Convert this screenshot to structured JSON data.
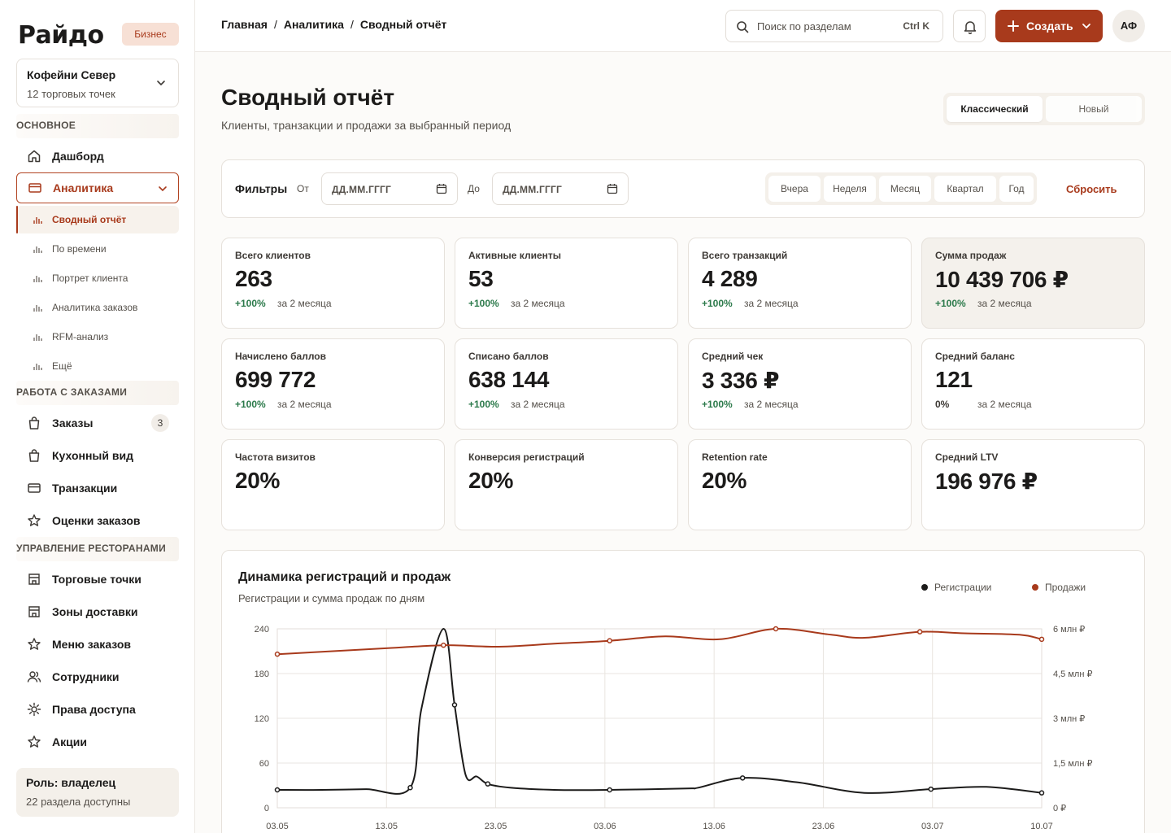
{
  "brand": {
    "logo": "Райдо",
    "badge": "Бизнес",
    "accent": "#a83a1c"
  },
  "org": {
    "name": "Кофейни Север",
    "subtitle": "12 торговых точек"
  },
  "sidebar": {
    "sections": [
      {
        "title": "ОСНОВНОЕ"
      },
      {
        "title": "РАБОТА С ЗАКАЗАМИ"
      },
      {
        "title": "УПРАВЛЕНИЕ РЕСТОРАНАМИ"
      }
    ],
    "main_items": [
      {
        "label": "Дашборд",
        "icon": "home-icon"
      },
      {
        "label": "Аналитика",
        "icon": "card-icon"
      }
    ],
    "analytics_sub": [
      {
        "label": "Сводный отчёт"
      },
      {
        "label": "По времени"
      },
      {
        "label": "Портрет клиента"
      },
      {
        "label": "Аналитика заказов"
      },
      {
        "label": "RFM-анализ"
      },
      {
        "label": "Ещё"
      }
    ],
    "orders_items": [
      {
        "label": "Заказы",
        "icon": "bag-icon",
        "count": "3"
      },
      {
        "label": "Кухонный вид",
        "icon": "bag-icon"
      },
      {
        "label": "Транзакции",
        "icon": "card-icon"
      },
      {
        "label": "Оценки заказов",
        "icon": "star-icon"
      }
    ],
    "rest_items": [
      {
        "label": "Торговые точки",
        "icon": "store-icon"
      },
      {
        "label": "Зоны доставки",
        "icon": "store-icon"
      },
      {
        "label": "Меню заказов",
        "icon": "star-icon"
      },
      {
        "label": "Сотрудники",
        "icon": "users-icon"
      },
      {
        "label": "Права доступа",
        "icon": "gear-icon"
      },
      {
        "label": "Акции",
        "icon": "star-icon"
      }
    ],
    "role": {
      "title": "Роль: владелец",
      "subtitle": "22 раздела доступны"
    }
  },
  "topbar": {
    "breadcrumbs": [
      "Главная",
      "Аналитика",
      "Сводный отчёт"
    ],
    "search_placeholder": "Поиск по разделам",
    "search_shortcut": "Ctrl K",
    "create_label": "Создать",
    "avatar_initials": "АФ"
  },
  "header": {
    "title": "Сводный отчёт",
    "subtitle": "Клиенты, транзакции и продажи за выбранный период",
    "view_modes": [
      "Классический",
      "Новый"
    ],
    "active_view": "Классический"
  },
  "filters": {
    "title": "Фильтры",
    "from_label": "От",
    "to_label": "До",
    "from_value": "ДД.ММ.ГГГГ",
    "to_value": "ДД.ММ.ГГГГ",
    "periods": [
      "Вчера",
      "Неделя",
      "Месяц",
      "Квартал",
      "Год"
    ],
    "reset_label": "Сбросить"
  },
  "kpis": [
    {
      "label": "Всего клиентов",
      "value": "263",
      "delta": "+100%",
      "period": "за 2 месяца"
    },
    {
      "label": "Активные клиенты",
      "value": "53",
      "delta": "+100%",
      "period": "за 2 месяца"
    },
    {
      "label": "Всего транзакций",
      "value": "4 289",
      "delta": "+100%",
      "period": "за 2 месяца"
    },
    {
      "label": "Сумма продаж",
      "value": "10 439 706 ₽",
      "delta": "+100%",
      "period": "за 2 месяца",
      "highlight": true
    },
    {
      "label": "Начислено баллов",
      "value": "699 772",
      "delta": "+100%",
      "period": "за 2 месяца"
    },
    {
      "label": "Списано баллов",
      "value": "638 144",
      "delta": "+100%",
      "period": "за 2 месяца"
    },
    {
      "label": "Средний чек",
      "value": "3 336 ₽",
      "delta": "+100%",
      "period": "за 2 месяца"
    },
    {
      "label": "Средний баланс",
      "value": "121",
      "delta": "0%",
      "period": "за 2 месяца"
    },
    {
      "label": "Частота визитов",
      "value": "20%"
    },
    {
      "label": "Конверсия регистраций",
      "value": "20%"
    },
    {
      "label": "Retention rate",
      "value": "20%"
    },
    {
      "label": "Средний LTV",
      "value": "196 976 ₽"
    }
  ],
  "chart": {
    "title": "Динамика регистраций и продаж",
    "subtitle": "Регистрации и сумма продаж по дням"
  },
  "chart_data": {
    "type": "line",
    "title": "Динамика регистраций и продаж",
    "subtitle": "Регистрации и сумма продаж по дням",
    "x_ticks": [
      "03.05",
      "13.05",
      "23.05",
      "03.06",
      "13.06",
      "23.06",
      "03.07",
      "10.07"
    ],
    "y_left_ticks": [
      "0",
      "60",
      "120",
      "180",
      "240"
    ],
    "y_left_range": [
      0,
      240
    ],
    "y_right_ticks": [
      "0 ₽",
      "1,5 млн ₽",
      "3 млн ₽",
      "4,5 млн ₽",
      "6 млн ₽"
    ],
    "y_right_range": [
      0,
      6000000
    ],
    "grid": true,
    "legend_position": "top-right",
    "series": [
      {
        "name": "Регистрации",
        "color": "#1c1b1a",
        "axis": "left",
        "x": [
          0,
          4,
          8,
          12,
          13,
          15,
          16,
          17,
          18,
          19,
          21,
          25,
          30,
          37,
          38,
          42,
          47,
          53,
          59,
          64,
          69
        ],
        "y": [
          24,
          24,
          25,
          27,
          132,
          240,
          138,
          44,
          42,
          32,
          27,
          24,
          24,
          26,
          27,
          40,
          34,
          20,
          25,
          28,
          20
        ]
      },
      {
        "name": "Продажи",
        "color": "#a83a1c",
        "axis": "right",
        "x": [
          0,
          5,
          10,
          15,
          20,
          25,
          30,
          35,
          40,
          45,
          50,
          53,
          58,
          62,
          67,
          69
        ],
        "y": [
          5150000,
          5250000,
          5350000,
          5450000,
          5400000,
          5500000,
          5600000,
          5750000,
          5650000,
          6000000,
          5800000,
          5700000,
          5900000,
          5850000,
          5800000,
          5650000
        ]
      }
    ]
  }
}
